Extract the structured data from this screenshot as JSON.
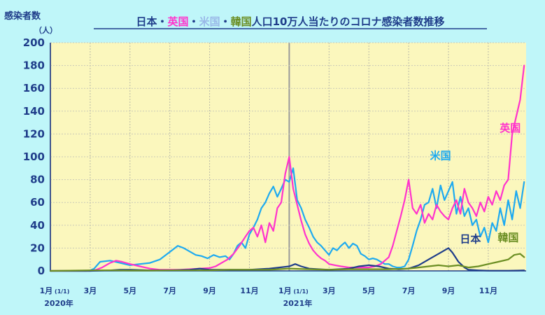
{
  "chart_data": {
    "type": "line",
    "title_parts": [
      {
        "text": "日本",
        "color": "#1f3d8a"
      },
      {
        "text": "・",
        "color": "#1f3d8a"
      },
      {
        "text": "英国",
        "color": "#ff33cc"
      },
      {
        "text": "・",
        "color": "#1f3d8a"
      },
      {
        "text": "米国",
        "color": "#9ab8e8"
      },
      {
        "text": "・",
        "color": "#1f3d8a"
      },
      {
        "text": "韓国",
        "color": "#6b8e23"
      },
      {
        "text": "人口10万人当たりのコロナ感染者数推移",
        "color": "#1f3d8a"
      }
    ],
    "ylabel": "感染者数",
    "yunit": "（人）",
    "ylim": [
      0,
      200
    ],
    "yticks": [
      0,
      20,
      40,
      60,
      80,
      100,
      120,
      140,
      160,
      180,
      200
    ],
    "xlim": [
      0,
      23.9
    ],
    "xticks": [
      {
        "x": 0,
        "label": "1月",
        "sub": "(1/1)"
      },
      {
        "x": 2,
        "label": "3月"
      },
      {
        "x": 4,
        "label": "5月"
      },
      {
        "x": 6,
        "label": "7月"
      },
      {
        "x": 8,
        "label": "9月"
      },
      {
        "x": 10,
        "label": "11月"
      },
      {
        "x": 12,
        "label": "1月",
        "sub": "(1/1)"
      },
      {
        "x": 14,
        "label": "3月"
      },
      {
        "x": 16,
        "label": "5月"
      },
      {
        "x": 18,
        "label": "7月"
      },
      {
        "x": 20,
        "label": "9月"
      },
      {
        "x": 22,
        "label": "11月"
      }
    ],
    "year_labels": [
      {
        "x": 0,
        "label": "2020年"
      },
      {
        "x": 12,
        "label": "2021年"
      }
    ],
    "grid": true,
    "plot_bg": "#fbf7bd",
    "series": [
      {
        "name": "米国",
        "color": "#1eaaf0",
        "label_at": [
          19.6,
          98
        ],
        "x": [
          0,
          1.0,
          1.8,
          2.0,
          2.2,
          2.5,
          3.0,
          3.5,
          4.0,
          4.5,
          5.0,
          5.5,
          5.8,
          6.1,
          6.4,
          6.7,
          7.0,
          7.3,
          7.6,
          7.9,
          8.2,
          8.5,
          8.8,
          9.0,
          9.2,
          9.4,
          9.6,
          9.8,
          10.0,
          10.2,
          10.4,
          10.6,
          10.8,
          11.0,
          11.2,
          11.4,
          11.6,
          11.8,
          12.0,
          12.2,
          12.4,
          12.6,
          12.8,
          13.0,
          13.2,
          13.4,
          13.6,
          13.8,
          14.0,
          14.2,
          14.4,
          14.6,
          14.8,
          15.0,
          15.2,
          15.4,
          15.6,
          15.8,
          16.0,
          16.2,
          16.4,
          16.6,
          16.8,
          17.0,
          17.2,
          17.4,
          17.6,
          17.8,
          18.0,
          18.2,
          18.4,
          18.6,
          18.8,
          19.0,
          19.2,
          19.4,
          19.6,
          19.8,
          20.0,
          20.2,
          20.4,
          20.6,
          20.8,
          21.0,
          21.2,
          21.4,
          21.6,
          21.8,
          22.0,
          22.2,
          22.4,
          22.6,
          22.8,
          23.0,
          23.2,
          23.4,
          23.6,
          23.8
        ],
        "values": [
          0,
          0,
          0,
          0.5,
          2,
          8,
          9,
          7,
          5,
          6,
          7,
          10,
          14,
          18,
          22,
          20,
          17,
          14,
          13,
          11,
          14,
          12,
          13,
          10,
          15,
          22,
          25,
          20,
          32,
          38,
          45,
          55,
          60,
          68,
          74,
          65,
          72,
          80,
          78,
          90,
          62,
          55,
          45,
          38,
          30,
          25,
          22,
          18,
          14,
          20,
          18,
          22,
          25,
          20,
          24,
          22,
          15,
          13,
          10,
          11,
          10,
          8,
          6,
          6,
          4,
          3,
          3,
          4,
          10,
          22,
          35,
          45,
          58,
          60,
          72,
          55,
          75,
          62,
          70,
          78,
          50,
          65,
          48,
          55,
          40,
          45,
          30,
          38,
          25,
          42,
          35,
          55,
          40,
          62,
          45,
          70,
          55,
          78
        ]
      },
      {
        "name": "英国",
        "color": "#ff33cc",
        "label_at": [
          23.1,
          122
        ],
        "x": [
          0,
          1.0,
          2.0,
          2.3,
          2.6,
          3.0,
          3.3,
          3.6,
          4.0,
          4.5,
          5.0,
          5.5,
          6.0,
          6.5,
          7.0,
          7.5,
          8.0,
          8.3,
          8.6,
          8.9,
          9.2,
          9.5,
          9.8,
          10.0,
          10.2,
          10.4,
          10.6,
          10.8,
          11.0,
          11.2,
          11.4,
          11.6,
          11.8,
          12.0,
          12.2,
          12.4,
          12.6,
          12.8,
          13.0,
          13.2,
          13.4,
          13.6,
          13.8,
          14.0,
          14.3,
          14.6,
          15.0,
          15.3,
          15.6,
          16.0,
          16.3,
          16.6,
          17.0,
          17.2,
          17.4,
          17.6,
          17.8,
          18.0,
          18.2,
          18.4,
          18.6,
          18.8,
          19.0,
          19.2,
          19.4,
          19.6,
          19.8,
          20.0,
          20.2,
          20.4,
          20.6,
          20.8,
          21.0,
          21.2,
          21.4,
          21.6,
          21.8,
          22.0,
          22.2,
          22.4,
          22.6,
          22.8,
          23.0,
          23.2,
          23.4,
          23.6,
          23.8
        ],
        "values": [
          0,
          0,
          0,
          1,
          3,
          7,
          9,
          8,
          6,
          4,
          2,
          1,
          1,
          1,
          1.5,
          2,
          2.5,
          4,
          7,
          10,
          15,
          22,
          30,
          35,
          38,
          30,
          40,
          25,
          42,
          35,
          55,
          60,
          85,
          100,
          72,
          58,
          44,
          32,
          24,
          18,
          14,
          11,
          9,
          6,
          5,
          4,
          3,
          3,
          3,
          3,
          4,
          6,
          12,
          22,
          35,
          48,
          62,
          80,
          55,
          50,
          58,
          42,
          50,
          45,
          58,
          52,
          48,
          45,
          55,
          62,
          50,
          72,
          60,
          55,
          48,
          60,
          52,
          65,
          58,
          70,
          62,
          75,
          80,
          120,
          135,
          150,
          180
        ]
      },
      {
        "name": "日本",
        "color": "#1f3d8a",
        "label_at": [
          21.1,
          25
        ],
        "x": [
          0,
          2.0,
          3.0,
          3.5,
          4.0,
          5.0,
          6.0,
          7.0,
          7.5,
          8.0,
          9.0,
          10.0,
          11.0,
          11.5,
          12.0,
          12.3,
          12.6,
          13.0,
          13.5,
          14.0,
          15.0,
          15.5,
          16.0,
          16.5,
          17.0,
          17.5,
          18.0,
          18.5,
          19.0,
          19.5,
          19.8,
          20.0,
          20.2,
          20.5,
          20.8,
          21.0,
          21.5,
          22.0,
          22.5,
          23.0,
          23.5,
          23.8
        ],
        "values": [
          0,
          0,
          0.5,
          1,
          1,
          0.5,
          0.5,
          1,
          2,
          1,
          1,
          1,
          2,
          3,
          4,
          6,
          4,
          2,
          1.5,
          1,
          2,
          4,
          5,
          4,
          2,
          1.5,
          2,
          5,
          10,
          15,
          18,
          20,
          16,
          8,
          3,
          1,
          0.5,
          0.2,
          0.2,
          0.2,
          0.3,
          0.5
        ]
      },
      {
        "name": "韓国",
        "color": "#6b8e23",
        "label_at": [
          23.0,
          26
        ],
        "x": [
          0,
          2.0,
          3.0,
          4.0,
          5.0,
          6.0,
          7.0,
          8.0,
          9.0,
          10.0,
          11.0,
          12.0,
          13.0,
          14.0,
          15.0,
          16.0,
          17.0,
          18.0,
          18.5,
          19.0,
          19.5,
          20.0,
          20.5,
          21.0,
          21.5,
          22.0,
          22.5,
          23.0,
          23.3,
          23.6,
          23.8
        ],
        "values": [
          0,
          0.5,
          0.5,
          0.3,
          0.3,
          0.5,
          0.5,
          0.5,
          1,
          1,
          1,
          2,
          1.5,
          1,
          1.5,
          1.5,
          1.5,
          2,
          3,
          4,
          5,
          4,
          5,
          3,
          4,
          6,
          8,
          10,
          14,
          15,
          12
        ]
      }
    ]
  }
}
